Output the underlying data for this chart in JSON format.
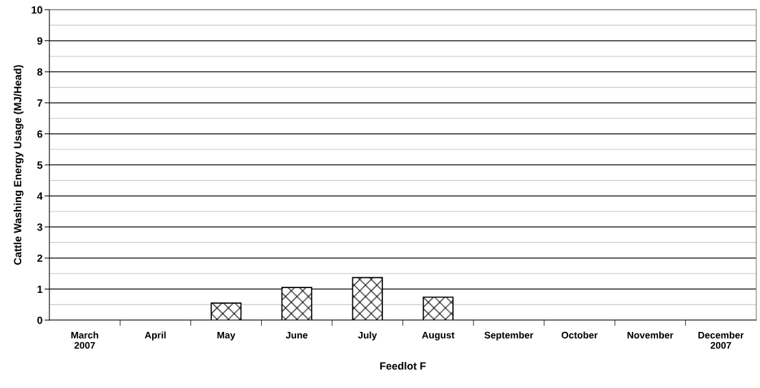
{
  "chart_data": {
    "type": "bar",
    "xlabel": "Feedlot F",
    "ylabel": "Cattle Washing Energy Usage (MJ/Head)",
    "categories": [
      "March\n2007",
      "April",
      "May",
      "June",
      "July",
      "August",
      "September",
      "October",
      "November",
      "December\n2007"
    ],
    "values": [
      0,
      0,
      0.55,
      1.05,
      1.37,
      0.74,
      0,
      0,
      0,
      0
    ],
    "color": "#000000",
    "ylim": [
      0,
      10
    ],
    "yticks": [
      0,
      {
        "value": 0.5,
        "label": null
      },
      1,
      {
        "value": 1.5,
        "label": null
      },
      2,
      {
        "value": 2.5,
        "label": null
      },
      3,
      {
        "value": 3.5,
        "label": null
      },
      4,
      {
        "value": 4.5,
        "label": null
      },
      5,
      {
        "value": 5.5,
        "label": null
      },
      6,
      {
        "value": 6.5,
        "label": null
      },
      7,
      {
        "value": 7.5,
        "label": null
      },
      8,
      {
        "value": 8.5,
        "label": null
      },
      9,
      {
        "value": 9.5,
        "label": null
      },
      10
    ],
    "grid": "y"
  }
}
